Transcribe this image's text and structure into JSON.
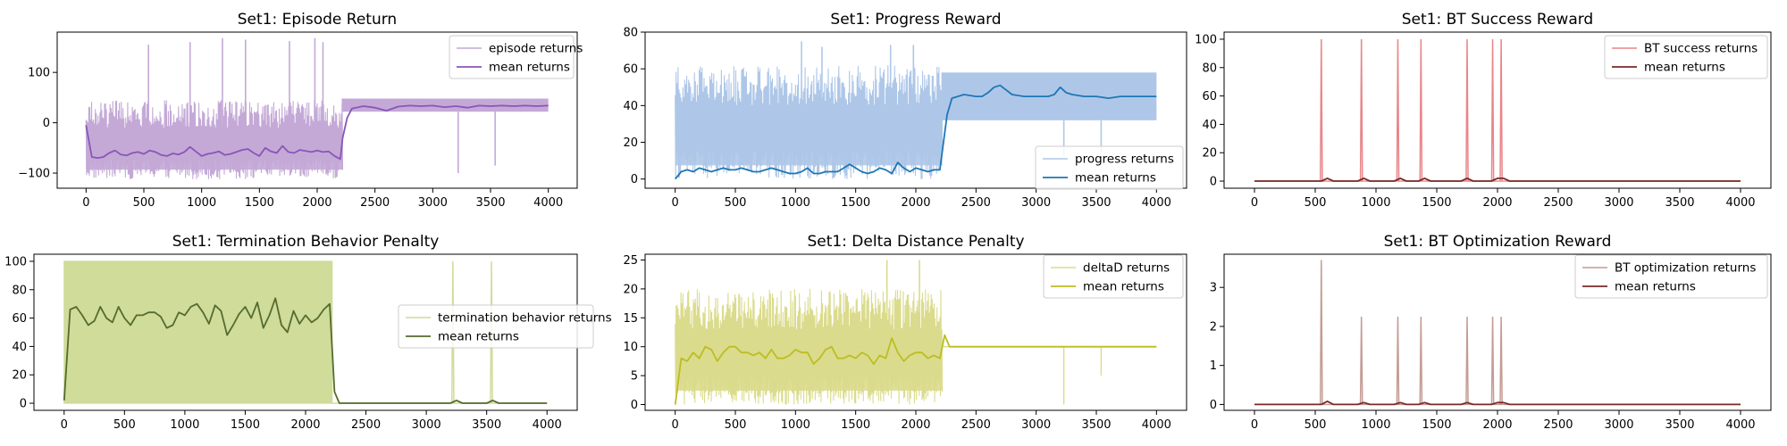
{
  "chart_data": [
    {
      "type": "line",
      "title": "Set1: Episode Return",
      "xlim": [
        -250,
        4250
      ],
      "ylim": [
        -130,
        180
      ],
      "xticks": [
        0,
        500,
        1000,
        1500,
        2000,
        2500,
        3000,
        3500,
        4000
      ],
      "yticks": [
        -100,
        0,
        100
      ],
      "legend": {
        "placement": "top-right",
        "entries": [
          "episode returns",
          "mean returns"
        ]
      },
      "colors": {
        "raw": "#c4a9d7",
        "mean": "#8a55b8"
      },
      "raw_pattern": {
        "phase1": {
          "x_range": [
            0,
            2220
          ],
          "band": [
            -112,
            45
          ],
          "spikes": [
            [
              540,
              155
            ],
            [
              900,
              160
            ],
            [
              1180,
              168
            ],
            [
              1380,
              165
            ],
            [
              1760,
              162
            ],
            [
              1980,
              168
            ],
            [
              2050,
              160
            ]
          ]
        },
        "phase2": {
          "x_range": [
            2220,
            4000
          ],
          "band": [
            22,
            48
          ],
          "dips": [
            [
              3220,
              -100
            ],
            [
              3540,
              -85
            ]
          ]
        }
      },
      "series": [
        {
          "name": "mean returns",
          "x": [
            0,
            50,
            100,
            150,
            200,
            250,
            300,
            350,
            400,
            450,
            500,
            550,
            600,
            650,
            700,
            750,
            800,
            850,
            900,
            950,
            1000,
            1050,
            1100,
            1150,
            1200,
            1250,
            1300,
            1350,
            1400,
            1450,
            1500,
            1550,
            1600,
            1650,
            1700,
            1750,
            1800,
            1850,
            1900,
            1950,
            2000,
            2050,
            2100,
            2150,
            2200,
            2220,
            2260,
            2300,
            2400,
            2500,
            2600,
            2700,
            2800,
            2900,
            3000,
            3100,
            3200,
            3300,
            3400,
            3500,
            3600,
            3700,
            3800,
            3900,
            4000
          ],
          "y": [
            -5,
            -68,
            -70,
            -68,
            -60,
            -55,
            -63,
            -65,
            -60,
            -58,
            -62,
            -55,
            -58,
            -64,
            -66,
            -61,
            -63,
            -58,
            -48,
            -57,
            -66,
            -62,
            -60,
            -57,
            -64,
            -62,
            -58,
            -54,
            -52,
            -60,
            -66,
            -50,
            -57,
            -60,
            -46,
            -58,
            -60,
            -54,
            -56,
            -58,
            -55,
            -58,
            -57,
            -66,
            -72,
            -30,
            10,
            28,
            33,
            30,
            24,
            32,
            34,
            33,
            34,
            31,
            33,
            30,
            34,
            33,
            34,
            33,
            34,
            33,
            34
          ]
        }
      ]
    },
    {
      "type": "line",
      "title": "Set1: Progress Reward",
      "xlim": [
        -250,
        4250
      ],
      "ylim": [
        -5,
        80
      ],
      "xticks": [
        0,
        500,
        1000,
        1500,
        2000,
        2500,
        3000,
        3500,
        4000
      ],
      "yticks": [
        0,
        20,
        40,
        60,
        80
      ],
      "legend": {
        "placement": "bottom-right",
        "entries": [
          "progress returns",
          "mean returns"
        ]
      },
      "colors": {
        "raw": "#aec7e8",
        "mean": "#1f77b4"
      },
      "raw_pattern": {
        "phase1": {
          "x_range": [
            0,
            2220
          ],
          "band": [
            0,
            62
          ],
          "spikes": [
            [
              1050,
              75
            ],
            [
              1220,
              72
            ],
            [
              1790,
              73
            ],
            [
              1980,
              73
            ]
          ]
        },
        "phase2": {
          "x_range": [
            2220,
            4000
          ],
          "band": [
            32,
            58
          ],
          "dips": [
            [
              3230,
              12
            ],
            [
              3540,
              15
            ]
          ]
        }
      },
      "series": [
        {
          "name": "mean returns",
          "x": [
            0,
            50,
            100,
            150,
            200,
            250,
            300,
            350,
            400,
            450,
            500,
            550,
            600,
            650,
            700,
            750,
            800,
            850,
            900,
            950,
            1000,
            1050,
            1100,
            1150,
            1200,
            1250,
            1300,
            1350,
            1400,
            1450,
            1500,
            1550,
            1600,
            1650,
            1700,
            1750,
            1800,
            1850,
            1900,
            1950,
            2000,
            2050,
            2100,
            2150,
            2200,
            2220,
            2260,
            2300,
            2400,
            2500,
            2550,
            2600,
            2650,
            2700,
            2800,
            2900,
            3000,
            3100,
            3150,
            3200,
            3250,
            3300,
            3400,
            3500,
            3600,
            3700,
            3800,
            3900,
            4000
          ],
          "y": [
            0,
            4,
            5,
            4,
            6,
            5,
            4,
            5,
            6,
            5,
            5,
            6,
            5,
            4,
            4,
            5,
            6,
            5,
            4,
            3,
            3,
            4,
            6,
            3,
            3,
            4,
            4,
            4,
            6,
            8,
            6,
            4,
            3,
            4,
            6,
            5,
            3,
            9,
            6,
            4,
            6,
            5,
            4,
            5,
            5,
            15,
            35,
            44,
            46,
            45,
            45,
            47,
            50,
            51,
            46,
            45,
            45,
            45,
            46,
            50,
            47,
            46,
            45,
            45,
            44,
            45,
            45,
            45,
            45
          ]
        }
      ]
    },
    {
      "type": "line",
      "title": "Set1: BT Success Reward",
      "xlim": [
        -250,
        4250
      ],
      "ylim": [
        -5,
        105
      ],
      "xticks": [
        0,
        500,
        1000,
        1500,
        2000,
        2500,
        3000,
        3500,
        4000
      ],
      "yticks": [
        0,
        20,
        40,
        60,
        80,
        100
      ],
      "legend": {
        "placement": "top-right",
        "entries": [
          "BT success returns",
          "mean returns"
        ]
      },
      "colors": {
        "raw": "#e8868a",
        "mean": "#7a2a2a"
      },
      "raw_pattern": {
        "spikes": [
          [
            550,
            100
          ],
          [
            880,
            100
          ],
          [
            1180,
            100
          ],
          [
            1370,
            100
          ],
          [
            1750,
            100
          ],
          [
            1960,
            100
          ],
          [
            2030,
            100
          ]
        ]
      },
      "series": [
        {
          "name": "mean returns",
          "x": [
            0,
            500,
            550,
            600,
            650,
            850,
            900,
            950,
            1150,
            1200,
            1250,
            1350,
            1400,
            1450,
            1700,
            1750,
            1800,
            1850,
            1950,
            2000,
            2050,
            2100,
            4000
          ],
          "y": [
            0,
            0,
            0,
            2,
            0,
            0,
            2,
            0,
            0,
            2,
            0,
            0,
            2,
            0,
            0,
            2,
            0,
            0,
            0,
            2,
            2,
            0,
            0
          ]
        }
      ]
    },
    {
      "type": "line",
      "title": "Set1: Termination Behavior Penalty",
      "xlim": [
        -250,
        4250
      ],
      "ylim": [
        -5,
        105
      ],
      "xticks": [
        0,
        500,
        1000,
        1500,
        2000,
        2500,
        3000,
        3500,
        4000
      ],
      "yticks": [
        0,
        20,
        40,
        60,
        80,
        100
      ],
      "legend": {
        "placement": "center-right",
        "entries": [
          "termination behavior returns",
          "mean returns"
        ]
      },
      "colors": {
        "raw": "#cfdc9a",
        "mean": "#556b2f"
      },
      "raw_pattern": {
        "phase1": {
          "x_range": [
            0,
            2220
          ],
          "band": [
            0,
            100
          ]
        },
        "spikes": [
          [
            3220,
            100
          ],
          [
            3540,
            100
          ]
        ]
      },
      "series": [
        {
          "name": "mean returns",
          "x": [
            0,
            50,
            100,
            150,
            200,
            250,
            300,
            350,
            400,
            450,
            500,
            550,
            600,
            650,
            700,
            750,
            800,
            850,
            900,
            950,
            1000,
            1050,
            1100,
            1150,
            1200,
            1250,
            1300,
            1350,
            1400,
            1450,
            1500,
            1550,
            1600,
            1650,
            1700,
            1750,
            1800,
            1850,
            1900,
            1950,
            2000,
            2050,
            2100,
            2150,
            2200,
            2240,
            2280,
            2300,
            3200,
            3250,
            3300,
            3500,
            3550,
            3600,
            4000
          ],
          "y": [
            2,
            66,
            68,
            62,
            55,
            58,
            68,
            60,
            57,
            68,
            60,
            55,
            62,
            62,
            64,
            64,
            61,
            53,
            55,
            64,
            62,
            68,
            70,
            64,
            56,
            69,
            65,
            48,
            55,
            63,
            68,
            60,
            71,
            53,
            62,
            74,
            55,
            50,
            65,
            56,
            62,
            57,
            60,
            66,
            70,
            8,
            0,
            0,
            0,
            2,
            0,
            0,
            2,
            0,
            0
          ]
        }
      ]
    },
    {
      "type": "line",
      "title": "Set1: Delta Distance Penalty",
      "xlim": [
        -250,
        4250
      ],
      "ylim": [
        -1,
        26
      ],
      "xticks": [
        0,
        500,
        1000,
        1500,
        2000,
        2500,
        3000,
        3500,
        4000
      ],
      "yticks": [
        0,
        5,
        10,
        15,
        20,
        25
      ],
      "legend": {
        "placement": "top-right",
        "entries": [
          "deltaD returns",
          "mean returns"
        ]
      },
      "colors": {
        "raw": "#dbdb8d",
        "mean": "#bcbd22"
      },
      "raw_pattern": {
        "phase1": {
          "x_range": [
            0,
            2220
          ],
          "band": [
            0,
            20
          ],
          "spikes": [
            [
              1760,
              25
            ],
            [
              2030,
              25
            ]
          ]
        },
        "phase2": {
          "x_range": [
            2220,
            4000
          ],
          "level": 10,
          "dips": [
            [
              3230,
              0
            ],
            [
              3540,
              5
            ]
          ]
        }
      },
      "series": [
        {
          "name": "mean returns",
          "x": [
            0,
            50,
            100,
            150,
            200,
            250,
            300,
            350,
            400,
            450,
            500,
            550,
            600,
            650,
            700,
            750,
            800,
            850,
            900,
            950,
            1000,
            1050,
            1100,
            1150,
            1200,
            1250,
            1300,
            1350,
            1400,
            1450,
            1500,
            1550,
            1600,
            1650,
            1700,
            1750,
            1800,
            1850,
            1900,
            1950,
            2000,
            2050,
            2100,
            2150,
            2200,
            2240,
            2280,
            2300,
            4000
          ],
          "y": [
            0,
            8,
            7.5,
            9,
            8,
            10,
            9.5,
            7.5,
            9,
            10,
            10,
            9,
            9,
            8.5,
            9,
            8,
            9.5,
            8,
            8,
            8.5,
            9.5,
            9,
            9,
            7,
            8,
            9.5,
            10,
            8,
            8,
            8.5,
            8,
            9,
            8.5,
            7,
            8.5,
            8,
            11.5,
            9,
            7.5,
            8.5,
            9,
            9,
            8,
            8.5,
            8,
            12,
            10,
            10,
            10
          ]
        }
      ]
    },
    {
      "type": "line",
      "title": "Set1: BT Optimization Reward",
      "xlim": [
        -250,
        4250
      ],
      "ylim": [
        -0.15,
        3.85
      ],
      "xticks": [
        0,
        500,
        1000,
        1500,
        2000,
        2500,
        3000,
        3500,
        4000
      ],
      "yticks": [
        0,
        1,
        2,
        3
      ],
      "legend": {
        "placement": "top-right",
        "entries": [
          "BT optimization returns",
          "mean returns"
        ]
      },
      "colors": {
        "raw": "#c49c94",
        "mean": "#7a2a2a"
      },
      "raw_pattern": {
        "spikes": [
          [
            550,
            3.7
          ],
          [
            880,
            2.25
          ],
          [
            1180,
            2.25
          ],
          [
            1370,
            2.25
          ],
          [
            1750,
            2.25
          ],
          [
            1960,
            2.25
          ],
          [
            2030,
            2.25
          ]
        ]
      },
      "series": [
        {
          "name": "mean returns",
          "x": [
            0,
            500,
            550,
            600,
            650,
            850,
            900,
            950,
            1150,
            1200,
            1250,
            1350,
            1400,
            1450,
            1700,
            1750,
            1800,
            1850,
            1950,
            2000,
            2050,
            2100,
            4000
          ],
          "y": [
            0,
            0,
            0,
            0.08,
            0,
            0,
            0.05,
            0,
            0,
            0.05,
            0,
            0,
            0.05,
            0,
            0,
            0.05,
            0,
            0,
            0,
            0.05,
            0.05,
            0,
            0
          ]
        }
      ]
    }
  ]
}
